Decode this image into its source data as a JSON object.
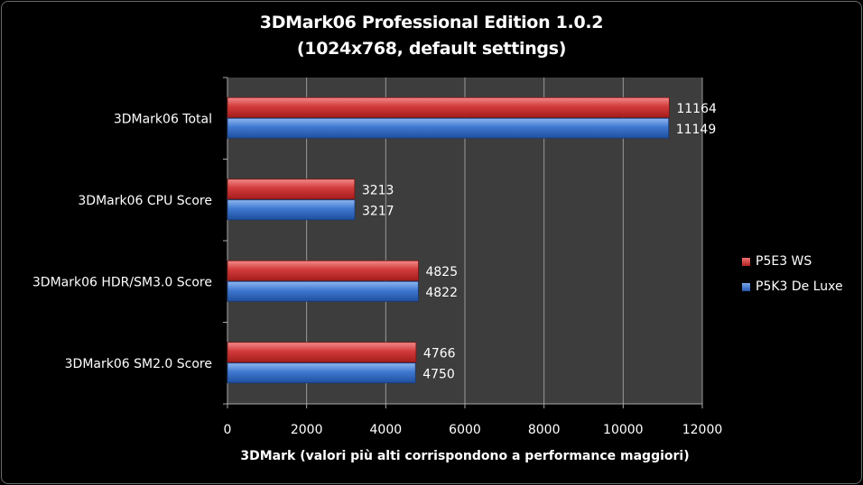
{
  "chart_data": {
    "type": "bar",
    "orientation": "horizontal",
    "title": "3DMark06 Professional Edition 1.0.2",
    "subtitle": "(1024x768, default settings)",
    "xlabel": "3DMark (valori più alti corrispondono a performance maggiori)",
    "ylabel": "",
    "categories": [
      "3DMark06 Total",
      "3DMark06 CPU Score",
      "3DMark06 HDR/SM3.0 Score",
      "3DMark06 SM2.0 Score"
    ],
    "series": [
      {
        "name": "P5E3 WS",
        "color": "#d23a3a",
        "values": [
          11164,
          3213,
          4825,
          4766
        ]
      },
      {
        "name": "P5K3 De Luxe",
        "color": "#3f78d0",
        "values": [
          11149,
          3217,
          4822,
          4750
        ]
      }
    ],
    "xlim": [
      0,
      12000
    ],
    "xticks": [
      0,
      2000,
      4000,
      6000,
      8000,
      10000,
      12000
    ],
    "grid": true,
    "plot_background": "#3d3d3d",
    "legend_position": "right"
  }
}
